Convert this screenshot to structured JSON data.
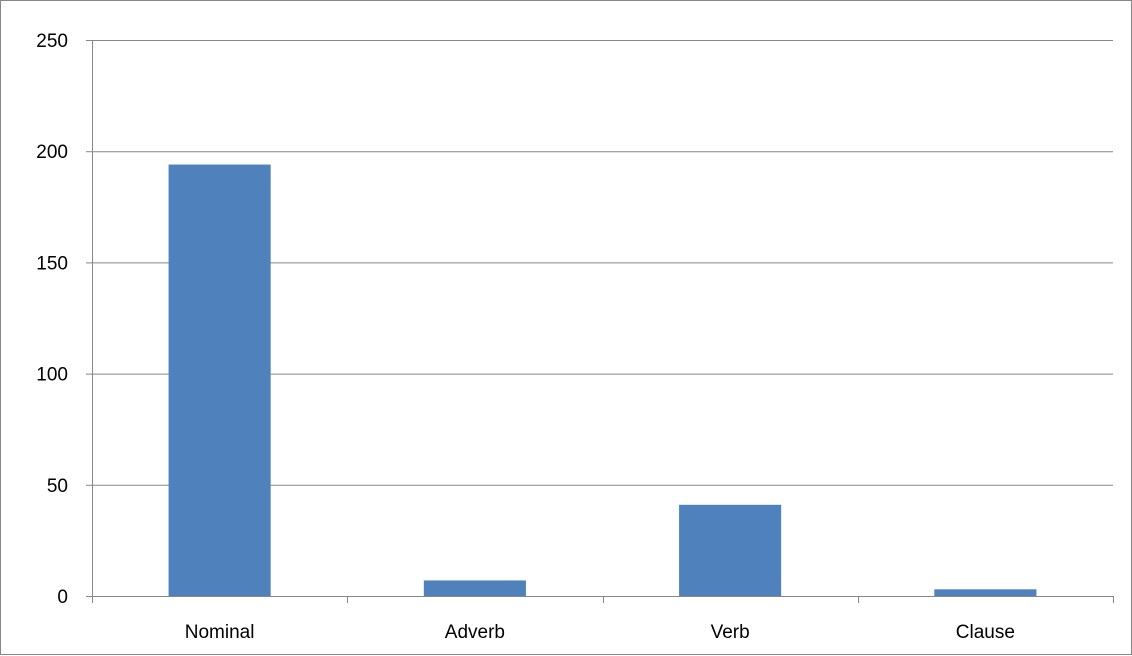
{
  "chart_data": {
    "type": "bar",
    "categories": [
      "Nominal",
      "Adverb",
      "Verb",
      "Clause"
    ],
    "values": [
      194,
      7,
      41,
      3
    ],
    "ylim": [
      0,
      250
    ],
    "yticks": [
      0,
      50,
      100,
      150,
      200,
      250
    ],
    "grid": true,
    "legend": "none",
    "title": "",
    "xlabel": "",
    "ylabel": "",
    "colors": {
      "bar": "#4F81BD",
      "gridline": "#878787",
      "axis": "#878787",
      "text": "#000000"
    }
  }
}
